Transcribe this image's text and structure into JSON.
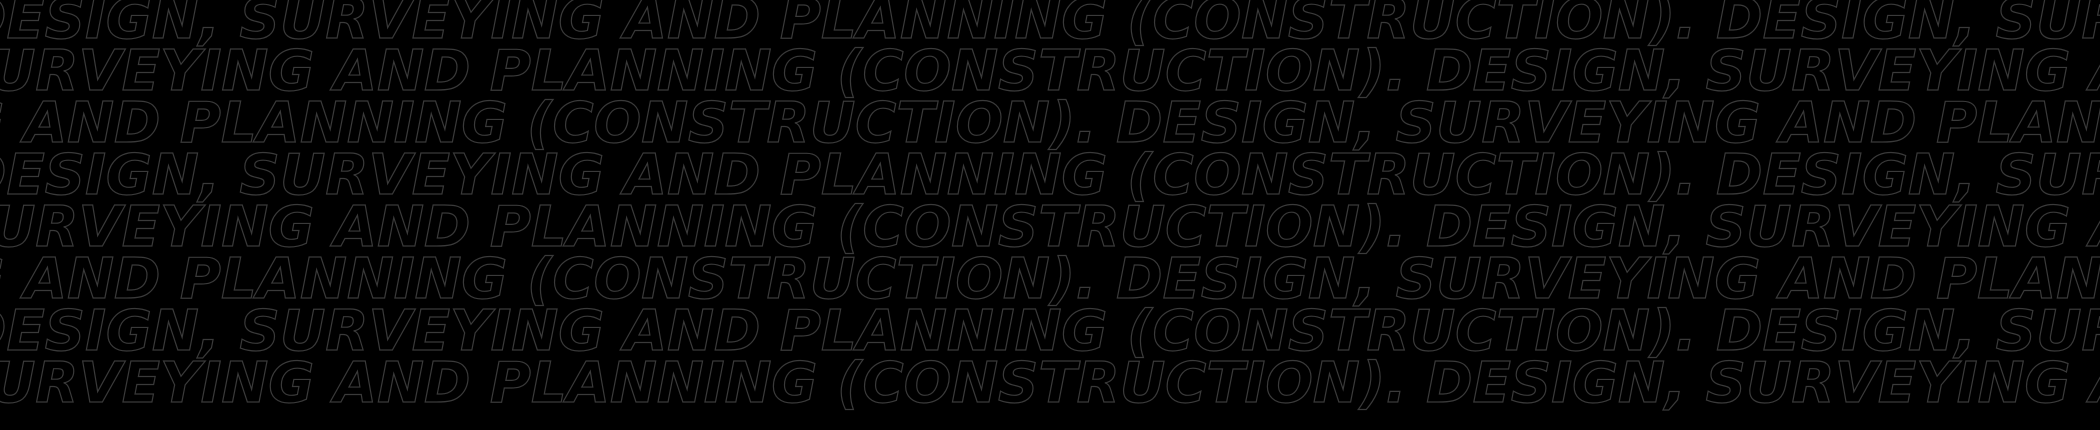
{
  "banner": {
    "phrase": "DESIGN, SURVEYING AND PLANNING (CONSTRUCTION). ",
    "rows": 8,
    "background_color": "#000000",
    "stroke_color": "#3a3a3a"
  }
}
